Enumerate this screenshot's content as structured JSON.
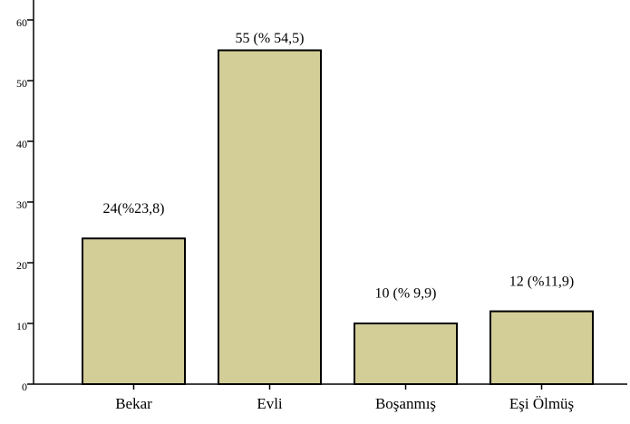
{
  "chart_data": {
    "type": "bar",
    "categories": [
      "Bekar",
      "Evli",
      "Boşanmış",
      "Eşi Ölmüş"
    ],
    "values": [
      24,
      55,
      10,
      12
    ],
    "value_labels": [
      "24(%23,8)",
      "55 (% 54,5)",
      "10 (% 9,9)",
      "12 (%11,9)"
    ],
    "color": "#d3cd98",
    "ylim": [
      0,
      60
    ],
    "yticks": [
      0,
      10,
      20,
      30,
      40,
      50,
      60
    ],
    "grid": false
  }
}
